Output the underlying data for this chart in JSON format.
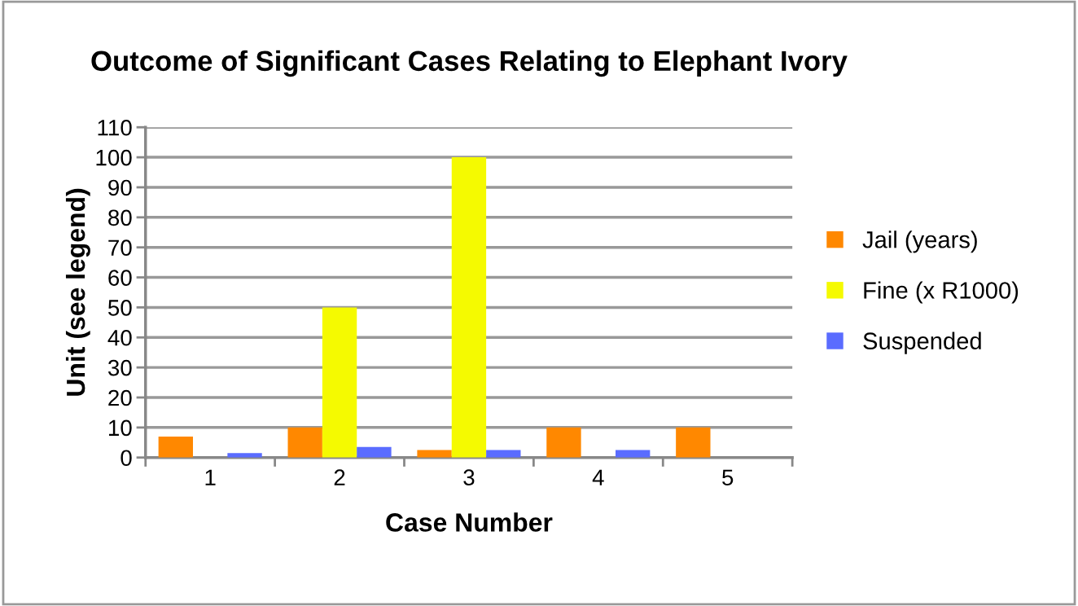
{
  "chart_data": {
    "type": "bar",
    "title": "Outcome of Significant Cases Relating to Elephant Ivory",
    "xlabel": "Case Number",
    "ylabel": "Unit (see legend)",
    "categories": [
      "1",
      "2",
      "3",
      "4",
      "5"
    ],
    "series": [
      {
        "name": "Jail (years)",
        "color": "#ff8800",
        "values": [
          7,
          10,
          2.5,
          10,
          10
        ]
      },
      {
        "name": "Fine (x R1000)",
        "color": "#f5fa00",
        "values": [
          0,
          50,
          100,
          0,
          0
        ]
      },
      {
        "name": "Suspended",
        "color": "#5a6cff",
        "values": [
          1.5,
          3.5,
          2.5,
          2.5,
          0
        ]
      }
    ],
    "ylim": [
      0,
      110
    ],
    "yticks": [
      0,
      10,
      20,
      30,
      40,
      50,
      60,
      70,
      80,
      90,
      100,
      110
    ],
    "grid": "y",
    "legend": "right"
  }
}
